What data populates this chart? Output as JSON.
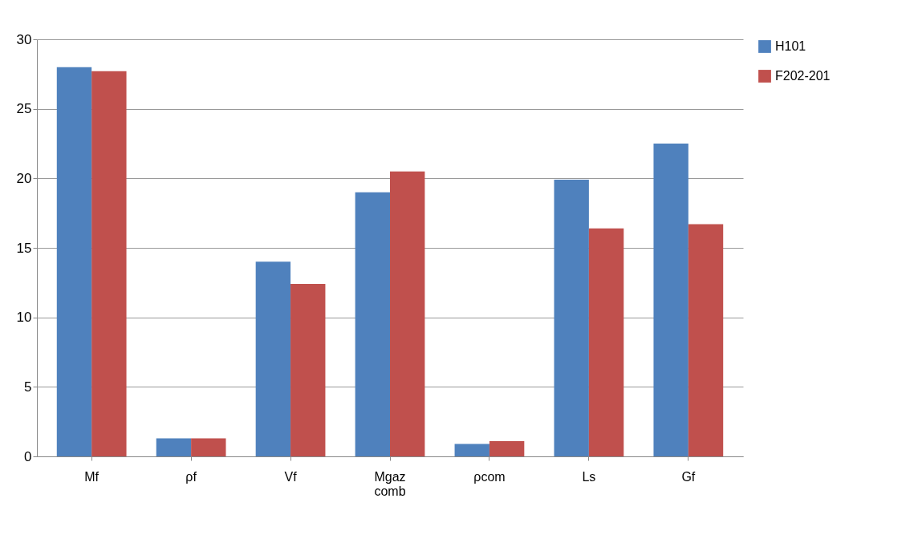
{
  "chart_data": {
    "type": "bar",
    "categories": [
      "Mf",
      "ρf",
      "Vf",
      "Mgaz comb",
      "ρcom",
      "Ls",
      "Gf"
    ],
    "series": [
      {
        "name": "H101",
        "color": "#4f81bd",
        "values": [
          28,
          1.3,
          14,
          19,
          0.9,
          19.9,
          22.5
        ]
      },
      {
        "name": "F202-201",
        "color": "#c0504d",
        "values": [
          27.7,
          1.3,
          12.4,
          20.5,
          1.1,
          16.4,
          16.7
        ]
      }
    ],
    "ylim": [
      0,
      30
    ],
    "yticks": [
      0,
      5,
      10,
      15,
      20,
      25,
      30
    ],
    "grid": "y",
    "legend": "right"
  }
}
